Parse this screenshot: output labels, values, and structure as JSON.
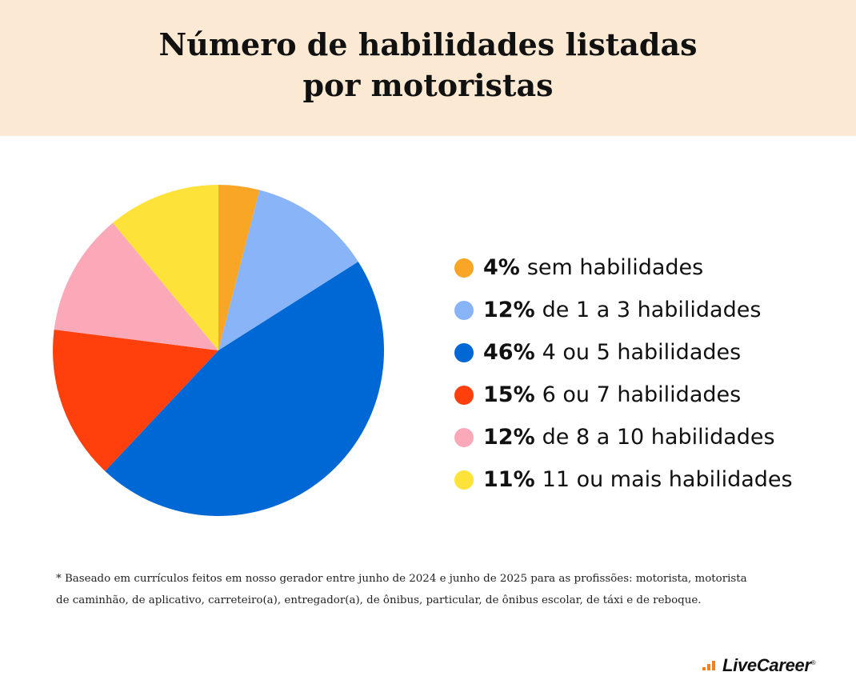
{
  "title": {
    "line1": "Número de habilidades listadas",
    "line2": "por motoristas"
  },
  "chart_data": {
    "type": "pie",
    "title": "Número de habilidades listadas por motoristas",
    "slices": [
      {
        "label": "sem habilidades",
        "value_label": "4%",
        "value": 4,
        "color": "#f9a526"
      },
      {
        "label": "de 1 a 3 habilidades",
        "value_label": "12%",
        "value": 12,
        "color": "#8ab4f8"
      },
      {
        "label": "4 ou 5 habilidades",
        "value_label": "46%",
        "value": 46,
        "color": "#0068d4"
      },
      {
        "label": "6 ou 7 habilidades",
        "value_label": "15%",
        "value": 15,
        "color": "#ff400d"
      },
      {
        "label": "de 8 a 10 habilidades",
        "value_label": "12%",
        "value": 12,
        "color": "#fba9b9"
      },
      {
        "label": "11 ou mais habilidades",
        "value_label": "11%",
        "value": 11,
        "color": "#fde23a"
      }
    ],
    "legend_position": "right",
    "start_angle_deg": 0,
    "direction": "clockwise"
  },
  "footnote": {
    "line1": "* Baseado em currículos feitos em nosso gerador entre junho de 2024 e junho de 2025 para as profissões: motorista, motorista",
    "line2": "de caminhão, de aplicativo, carreteiro(a), entregador(a), de ônibus, particular, de ônibus escolar, de táxi e de reboque."
  },
  "brand": {
    "name": "LiveCareer",
    "registered": "®",
    "color": "#f4821f",
    "icon": "livecareer-logo-icon"
  }
}
